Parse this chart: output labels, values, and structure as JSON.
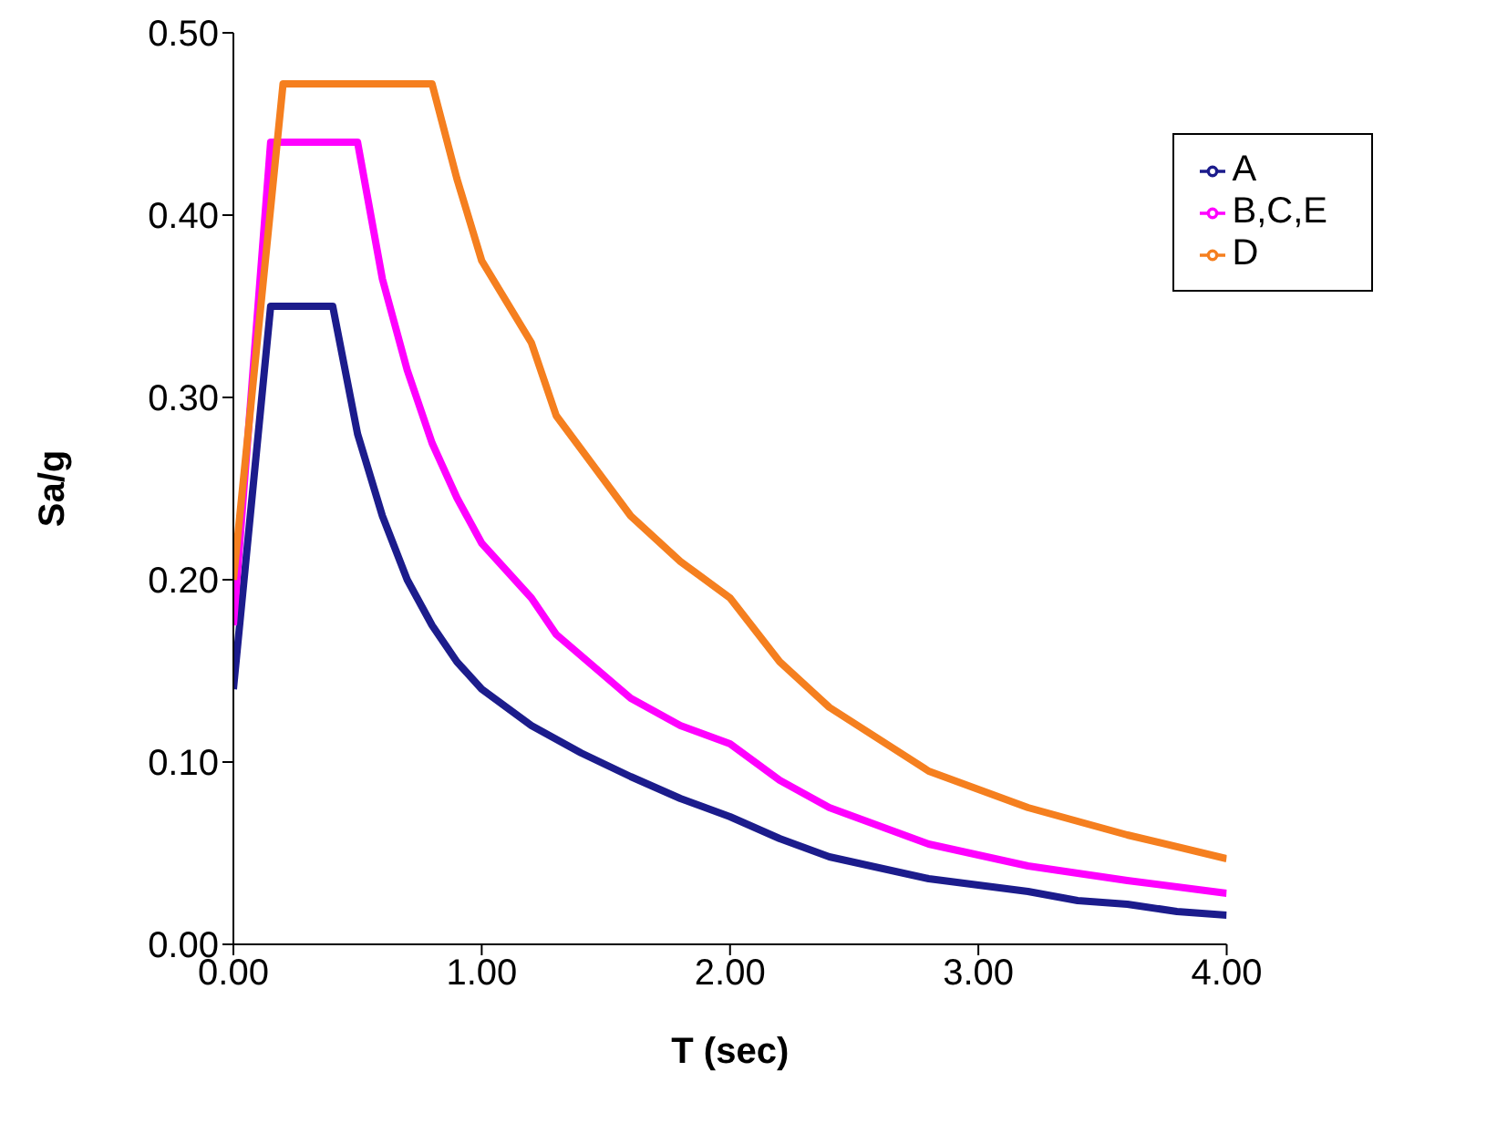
{
  "chart_data": {
    "type": "line",
    "xlabel": "T (sec)",
    "ylabel": "Sa/g",
    "xlim": [
      0,
      4
    ],
    "xticks": [
      {
        "value": 0,
        "label": "0.00"
      },
      {
        "value": 1,
        "label": "1.00"
      },
      {
        "value": 2,
        "label": "2.00"
      },
      {
        "value": 3,
        "label": "3.00"
      },
      {
        "value": 4,
        "label": "4.00"
      }
    ],
    "ylim": [
      0,
      0.5
    ],
    "yticks": [
      {
        "value": 0,
        "label": "0.00"
      },
      {
        "value": 0.1,
        "label": "0.10"
      },
      {
        "value": 0.2,
        "label": "0.20"
      },
      {
        "value": 0.3,
        "label": "0.30"
      },
      {
        "value": 0.4,
        "label": "0.40"
      },
      {
        "value": 0.5,
        "label": "0.50"
      }
    ],
    "grid": false,
    "legend": "top right",
    "marker": "none",
    "line_style": "solid",
    "series": [
      {
        "name": "A",
        "color": "#1c1c8c",
        "x": [
          0,
          0.15,
          0.4,
          0.5,
          0.6,
          0.7,
          0.8,
          0.9,
          1.0,
          1.2,
          1.4,
          1.6,
          1.8,
          2.0,
          2.2,
          2.4,
          2.8,
          3.2,
          3.4,
          3.6,
          3.8,
          4.0
        ],
        "values": [
          0.14,
          0.35,
          0.35,
          0.28,
          0.235,
          0.2,
          0.175,
          0.155,
          0.14,
          0.12,
          0.105,
          0.092,
          0.08,
          0.07,
          0.058,
          0.048,
          0.036,
          0.029,
          0.024,
          0.022,
          0.018,
          0.016
        ]
      },
      {
        "name": "B,C,E",
        "color": "#ff00ff",
        "x": [
          0,
          0.15,
          0.5,
          0.6,
          0.7,
          0.8,
          0.9,
          1.0,
          1.2,
          1.3,
          1.6,
          1.8,
          2.0,
          2.2,
          2.4,
          2.8,
          3.2,
          3.6,
          4.0
        ],
        "values": [
          0.175,
          0.44,
          0.44,
          0.365,
          0.315,
          0.275,
          0.245,
          0.22,
          0.19,
          0.17,
          0.135,
          0.12,
          0.11,
          0.09,
          0.075,
          0.055,
          0.043,
          0.035,
          0.028
        ]
      },
      {
        "name": "D",
        "color": "#f57f1f",
        "x": [
          0,
          0.2,
          0.8,
          0.9,
          1.0,
          1.2,
          1.3,
          1.6,
          1.8,
          2.0,
          2.2,
          2.4,
          2.8,
          3.2,
          3.6,
          4.0
        ],
        "values": [
          0.2,
          0.472,
          0.472,
          0.42,
          0.375,
          0.33,
          0.29,
          0.235,
          0.21,
          0.19,
          0.155,
          0.13,
          0.095,
          0.075,
          0.06,
          0.047
        ]
      }
    ]
  }
}
